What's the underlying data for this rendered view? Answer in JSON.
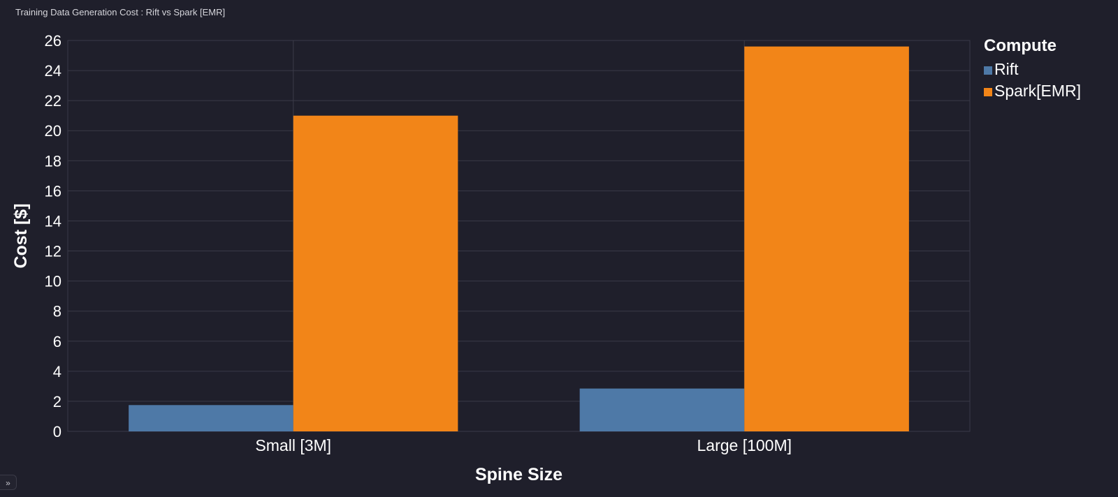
{
  "chart_data": {
    "type": "bar",
    "title": "Training Data Generation Cost : Rift vs Spark [EMR]",
    "xlabel": "Spine Size",
    "ylabel": "Cost [$]",
    "categories": [
      "Small [3M]",
      "Large [100M]"
    ],
    "series": [
      {
        "name": "Rift",
        "values": [
          1.75,
          2.85
        ]
      },
      {
        "name": "Spark[EMR]",
        "values": [
          21.0,
          25.6
        ]
      }
    ],
    "ylim": [
      0,
      26
    ],
    "yticks": [
      "0",
      "2",
      "4",
      "6",
      "8",
      "10",
      "12",
      "14",
      "16",
      "18",
      "20",
      "22",
      "24",
      "26"
    ],
    "grid": true,
    "legend": {
      "title": "Compute",
      "placement": "right"
    }
  },
  "colors": {
    "background": "#1f1f2b",
    "grid": "#3a3a48",
    "text": "#ffffff",
    "series": [
      "#4e79a7",
      "#f28518"
    ]
  },
  "ui": {
    "expand_handle_icon": "chevron-double-right-icon",
    "expand_handle_glyph": "»"
  }
}
